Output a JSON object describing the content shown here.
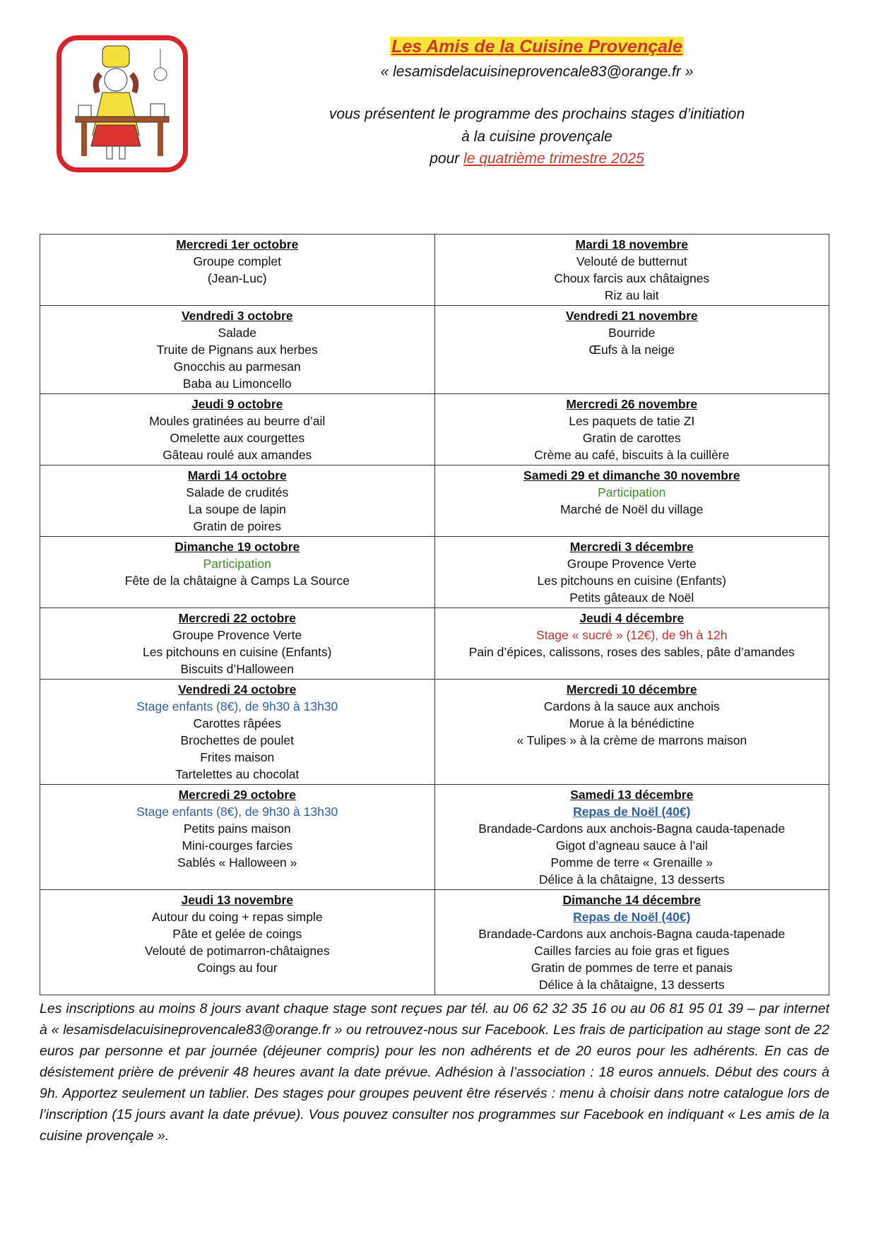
{
  "header": {
    "title": "Les Amis de la Cuisine Provençale",
    "email": "« lesamisdelacuisineprovencale83@orange.fr »",
    "intro_line1": "vous présentent le programme des prochains stages d’initiation",
    "intro_line2": "à la cuisine provençale",
    "intro_pour": "pour ",
    "intro_period": "le quatrième trimestre 2025"
  },
  "rows": [
    [
      {
        "date": "Mercredi 1er octobre",
        "lines": [
          {
            "t": "Groupe complet"
          },
          {
            "t": "(Jean-Luc)"
          }
        ]
      },
      {
        "date": "Mardi 18 novembre",
        "lines": [
          {
            "t": "Velouté de butternut"
          },
          {
            "t": "Choux farcis aux châtaignes"
          },
          {
            "t": "Riz au lait"
          }
        ]
      }
    ],
    [
      {
        "date": "Vendredi 3 octobre",
        "lines": [
          {
            "t": "Salade"
          },
          {
            "t": "Truite de Pignans aux herbes"
          },
          {
            "t": "Gnocchis au parmesan"
          },
          {
            "t": "Baba au Limoncello"
          }
        ]
      },
      {
        "date": "Vendredi 21 novembre",
        "lines": [
          {
            "t": "Bourride"
          },
          {
            "t": "Œufs à la neige"
          }
        ]
      }
    ],
    [
      {
        "date": "Jeudi 9 octobre",
        "lines": [
          {
            "t": "Moules gratinées au beurre d’ail"
          },
          {
            "t": "Omelette aux courgettes"
          },
          {
            "t": "Gâteau roulé aux amandes"
          }
        ]
      },
      {
        "date": "Mercredi 26 novembre",
        "lines": [
          {
            "t": "Les paquets de tatie ZI"
          },
          {
            "t": "Gratin de carottes"
          },
          {
            "t": "Crème au café, biscuits à la cuillère"
          }
        ]
      }
    ],
    [
      {
        "date": "Mardi 14 octobre",
        "lines": [
          {
            "t": "Salade de crudités"
          },
          {
            "t": "La soupe de lapin"
          },
          {
            "t": "Gratin de poires"
          }
        ]
      },
      {
        "date": "Samedi 29 et dimanche 30 novembre",
        "lines": [
          {
            "t": "Participation",
            "c": "g"
          },
          {
            "t": "Marché de Noël du village"
          }
        ]
      }
    ],
    [
      {
        "date": "Dimanche 19 octobre",
        "lines": [
          {
            "t": "Participation",
            "c": "g"
          },
          {
            "t": "Fête de la châtaigne à Camps La Source"
          }
        ]
      },
      {
        "date": "Mercredi 3 décembre",
        "lines": [
          {
            "t": "Groupe Provence Verte"
          },
          {
            "t": "Les pitchouns en cuisine (Enfants)"
          },
          {
            "t": "Petits gâteaux de Noël"
          }
        ]
      }
    ],
    [
      {
        "date": "Mercredi 22 octobre",
        "lines": [
          {
            "t": "Groupe Provence Verte"
          },
          {
            "t": "Les pitchouns en cuisine (Enfants)"
          },
          {
            "t": "Biscuits d’Halloween"
          }
        ]
      },
      {
        "date": "Jeudi 4 décembre",
        "lines": [
          {
            "t": "Stage « sucré » (12€), de 9h à 12h",
            "c": "r"
          },
          {
            "t": "Pain d’épices, calissons, roses des sables, pâte d’amandes"
          }
        ]
      }
    ],
    [
      {
        "date": "Vendredi 24 octobre",
        "lines": [
          {
            "t": "Stage enfants (8€), de 9h30 à 13h30",
            "c": "b"
          },
          {
            "t": "Carottes râpées"
          },
          {
            "t": "Brochettes de poulet"
          },
          {
            "t": "Frites maison"
          },
          {
            "t": "Tartelettes au chocolat"
          }
        ]
      },
      {
        "date": "Mercredi 10 décembre",
        "lines": [
          {
            "t": "Cardons à la sauce aux anchois"
          },
          {
            "t": "Morue à la bénédictine"
          },
          {
            "t": "« Tulipes » à la crème de marrons maison"
          }
        ]
      }
    ],
    [
      {
        "date": "Mercredi 29 octobre",
        "lines": [
          {
            "t": "Stage enfants (8€), de 9h30 à 13h30",
            "c": "b"
          },
          {
            "t": "Petits pains maison"
          },
          {
            "t": "Mini-courges farcies"
          },
          {
            "t": "Sablés « Halloween »"
          }
        ]
      },
      {
        "date": "Samedi 13 décembre",
        "lines": [
          {
            "t": "Repas de Noël (40€)",
            "c": "bb"
          },
          {
            "t": "Brandade-Cardons aux anchois-Bagna cauda-tapenade"
          },
          {
            "t": "Gigot d’agneau sauce à l’ail"
          },
          {
            "t": "Pomme de terre « Grenaille »"
          },
          {
            "t": "Délice à la châtaigne, 13 desserts"
          }
        ]
      }
    ],
    [
      {
        "date": "Jeudi 13 novembre",
        "lines": [
          {
            "t": "Autour du coing + repas simple"
          },
          {
            "t": "Pâte et gelée de coings"
          },
          {
            "t": "Velouté de potimarron-châtaignes"
          },
          {
            "t": "Coings au four"
          }
        ]
      },
      {
        "date": "Dimanche 14 décembre",
        "lines": [
          {
            "t": "Repas de Noël (40€)",
            "c": "bb"
          },
          {
            "t": "Brandade-Cardons aux anchois-Bagna cauda-tapenade"
          },
          {
            "t": "Cailles farcies au foie gras et figues"
          },
          {
            "t": "Gratin de pommes de terre et panais"
          },
          {
            "t": "Délice à la châtaigne, 13 desserts"
          }
        ]
      }
    ]
  ],
  "footer": "Les inscriptions au moins 8 jours avant chaque stage sont reçues par tél. au 06 62 32 35 16 ou au 06 81 95 01 39 – par internet à « lesamisdelacuisineprovencale83@orange.fr » ou retrouvez-nous sur Facebook. Les frais de participation au stage sont de 22 euros par personne et par journée (déjeuner compris) pour les non adhérents et de 20 euros pour les adhérents. En cas de désistement prière de prévenir 48 heures avant la date prévue. Adhésion à l’association : 18 euros annuels. Début des cours à 9h. Apportez seulement un tablier. Des stages pour groupes peuvent être réservés : menu à choisir dans notre catalogue lors de l’inscription (15 jours avant la date prévue). Vous pouvez consulter nos programmes sur Facebook en indiquant « Les amis de la cuisine provençale ».",
  "colors": {
    "title_red": "#d0352b",
    "highlight": "#f7e53a",
    "green": "#3f8a2b",
    "blue": "#2e5fa0",
    "red": "#c0302b",
    "logo_border": "#d9232a"
  }
}
